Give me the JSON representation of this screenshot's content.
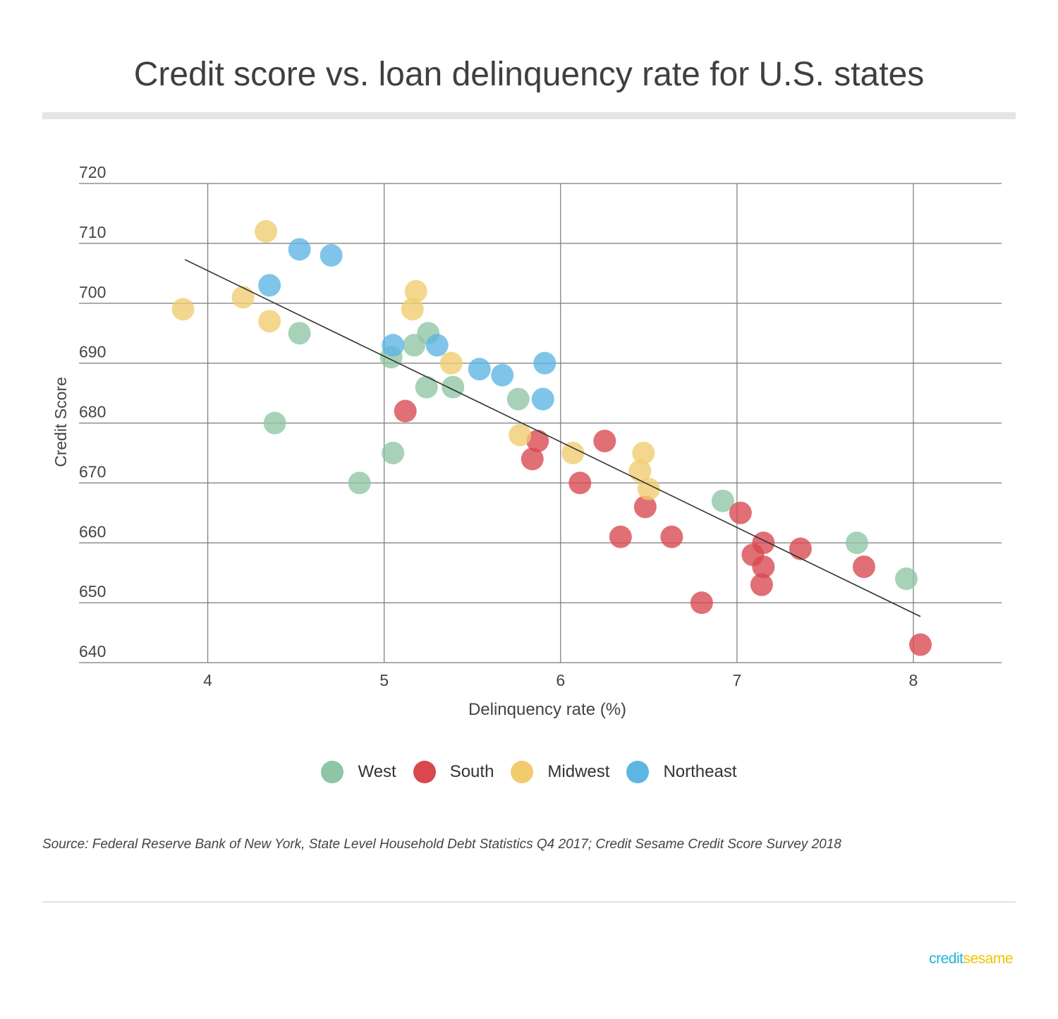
{
  "title": "Credit score vs. loan delinquency rate for U.S. states",
  "source": "Source: Federal Reserve Bank of New York, State Level Household Debt Statistics Q4 2017; Credit Sesame Credit Score Survey 2018",
  "logo": {
    "part1": "credit",
    "part2": "sesame"
  },
  "colors": {
    "West": "#8ec5a4",
    "South": "#d9474f",
    "Midwest": "#f1cc6e",
    "Northeast": "#5cb5e3"
  },
  "chart_data": {
    "type": "scatter",
    "title": "Credit score vs. loan delinquency rate for U.S. states",
    "xlabel": "Delinquency rate (%)",
    "ylabel": "Credit Score",
    "xlim": [
      3.27,
      8.5
    ],
    "ylim": [
      640,
      720
    ],
    "xticks": [
      4,
      5,
      6,
      7,
      8
    ],
    "yticks": [
      640,
      650,
      660,
      670,
      680,
      690,
      700,
      710,
      720
    ],
    "grid": true,
    "legend_position": "bottom",
    "series": [
      {
        "name": "West",
        "points": [
          [
            4.38,
            680
          ],
          [
            4.52,
            695
          ],
          [
            4.86,
            670
          ],
          [
            5.04,
            691
          ],
          [
            5.05,
            675
          ],
          [
            5.17,
            693
          ],
          [
            5.24,
            686
          ],
          [
            5.25,
            695
          ],
          [
            5.39,
            686
          ],
          [
            5.76,
            684
          ],
          [
            6.92,
            667
          ],
          [
            7.68,
            660
          ],
          [
            7.96,
            654
          ]
        ]
      },
      {
        "name": "South",
        "points": [
          [
            5.12,
            682
          ],
          [
            5.84,
            674
          ],
          [
            5.87,
            677
          ],
          [
            6.11,
            670
          ],
          [
            6.25,
            677
          ],
          [
            6.34,
            661
          ],
          [
            6.48,
            666
          ],
          [
            6.63,
            661
          ],
          [
            6.8,
            650
          ],
          [
            7.02,
            665
          ],
          [
            7.09,
            658
          ],
          [
            7.14,
            653
          ],
          [
            7.15,
            660
          ],
          [
            7.15,
            656
          ],
          [
            7.36,
            659
          ],
          [
            7.72,
            656
          ],
          [
            8.04,
            643
          ]
        ]
      },
      {
        "name": "Midwest",
        "points": [
          [
            3.86,
            699
          ],
          [
            4.2,
            701
          ],
          [
            4.33,
            712
          ],
          [
            4.35,
            697
          ],
          [
            5.16,
            699
          ],
          [
            5.18,
            702
          ],
          [
            5.38,
            690
          ],
          [
            5.77,
            678
          ],
          [
            6.07,
            675
          ],
          [
            6.45,
            672
          ],
          [
            6.47,
            675
          ],
          [
            6.5,
            669
          ]
        ]
      },
      {
        "name": "Northeast",
        "points": [
          [
            4.35,
            703
          ],
          [
            4.52,
            709
          ],
          [
            4.7,
            708
          ],
          [
            5.05,
            693
          ],
          [
            5.3,
            693
          ],
          [
            5.54,
            689
          ],
          [
            5.67,
            688
          ],
          [
            5.9,
            684
          ],
          [
            5.91,
            690
          ]
        ]
      }
    ],
    "trendline": {
      "x": [
        3.87,
        8.04
      ],
      "y": [
        707.3,
        647.7
      ]
    }
  }
}
